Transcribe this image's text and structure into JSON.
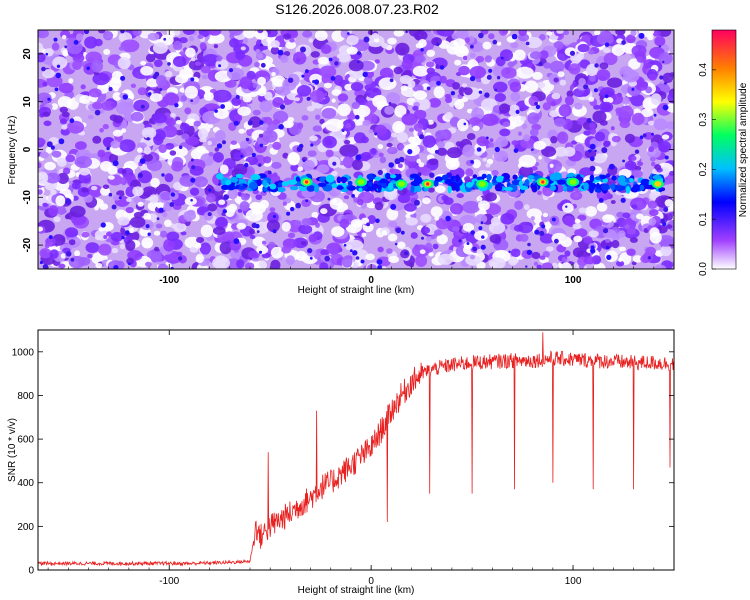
{
  "title": "S126.2026.008.07.23.R02",
  "chart_data": [
    {
      "type": "heatmap",
      "xlabel": "Height of straight line (km)",
      "ylabel": "Frequency (Hz)",
      "xlim": [
        -165,
        150
      ],
      "ylim": [
        -25,
        25
      ],
      "x_ticks": [
        -100,
        0,
        100
      ],
      "y_ticks": [
        -20,
        -10,
        0,
        10,
        20
      ],
      "colorbar": {
        "label": "Normalized spectral amplitude",
        "range": [
          0,
          0.48
        ],
        "ticks": [
          "0.0",
          "0.1",
          "0.2",
          "0.3",
          "0.4"
        ],
        "colors": [
          "#ffffff",
          "#a040ff",
          "#0000ff",
          "#00c0ff",
          "#00ff60",
          "#ffff00",
          "#ff8000",
          "#ff0060"
        ]
      },
      "features": [
        {
          "description": "band",
          "frequency_hz": -7,
          "x_start": -75,
          "x_end": 145,
          "peak_amplitude": 0.45
        }
      ]
    },
    {
      "type": "line",
      "xlabel": "Height of straight line (km)",
      "ylabel": "SNR (10 * v/v)",
      "xlim": [
        -165,
        150
      ],
      "ylim": [
        0,
        1100
      ],
      "x_ticks": [
        -100,
        0,
        100
      ],
      "y_ticks": [
        0,
        200,
        400,
        600,
        800,
        1000
      ],
      "color": "#e82020",
      "series": [
        {
          "x": [
            -165,
            -150,
            -130,
            -110,
            -90,
            -70,
            -60,
            -57,
            -55,
            -50,
            -45,
            -40,
            -35,
            -30,
            -25,
            -20,
            -15,
            -10,
            -5,
            0,
            5,
            10,
            15,
            20,
            25,
            30,
            40,
            50,
            60,
            70,
            80,
            90,
            100,
            110,
            120,
            130,
            140,
            150
          ],
          "y": [
            30,
            30,
            30,
            30,
            30,
            35,
            40,
            200,
            150,
            200,
            230,
            260,
            300,
            330,
            380,
            400,
            440,
            480,
            520,
            560,
            640,
            730,
            800,
            860,
            900,
            920,
            940,
            950,
            955,
            960,
            960,
            970,
            965,
            960,
            955,
            950,
            950,
            945
          ]
        }
      ],
      "dips": [
        {
          "x": 8,
          "y": 220
        },
        {
          "x": 29,
          "y": 350
        },
        {
          "x": 50,
          "y": 350
        },
        {
          "x": 71,
          "y": 370
        },
        {
          "x": 90,
          "y": 400
        },
        {
          "x": 110,
          "y": 370
        },
        {
          "x": 130,
          "y": 370
        },
        {
          "x": 148,
          "y": 470
        }
      ],
      "spikes": [
        {
          "x": -51,
          "y": 540
        },
        {
          "x": -27,
          "y": 730
        },
        {
          "x": 85,
          "y": 1090
        }
      ]
    }
  ]
}
